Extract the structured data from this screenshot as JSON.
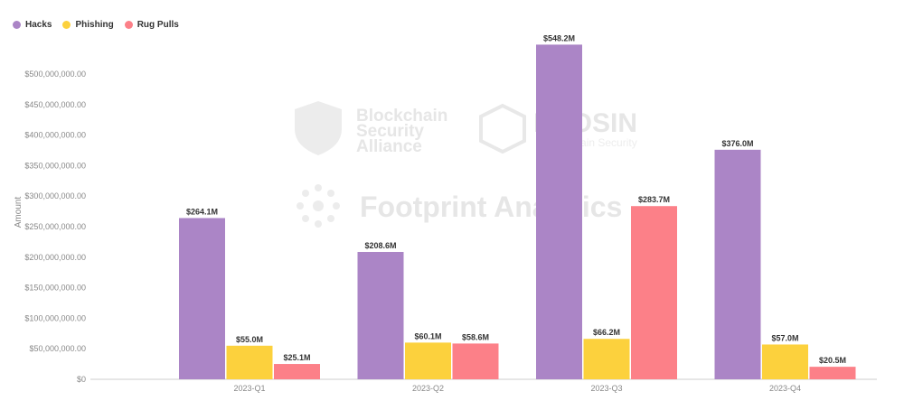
{
  "chart_data": {
    "type": "bar",
    "categories": [
      "2023-Q1",
      "2023-Q2",
      "2023-Q3",
      "2023-Q4"
    ],
    "series": [
      {
        "name": "Hacks",
        "color": "#ab85c6",
        "values": [
          264100000,
          208600000,
          548200000,
          376000000
        ],
        "labels": [
          "$264.1M",
          "$208.6M",
          "$548.2M",
          "$376.0M"
        ]
      },
      {
        "name": "Phishing",
        "color": "#fcd13d",
        "values": [
          55000000,
          60100000,
          66200000,
          57000000
        ],
        "labels": [
          "$55.0M",
          "$60.1M",
          "$66.2M",
          "$57.0M"
        ]
      },
      {
        "name": "Rug Pulls",
        "color": "#fc8088",
        "values": [
          25100000,
          58600000,
          283700000,
          20500000
        ],
        "labels": [
          "$25.1M",
          "$58.6M",
          "$283.7M",
          "$20.5M"
        ]
      }
    ],
    "ylabel": "Amount",
    "ylim": [
      0,
      550000000
    ],
    "yticks": [
      0,
      50000000,
      100000000,
      150000000,
      200000000,
      250000000,
      300000000,
      350000000,
      400000000,
      450000000,
      500000000
    ],
    "ytick_labels": [
      "$0",
      "$50,000,000.00",
      "$100,000,000.00",
      "$150,000,000.00",
      "$200,000,000.00",
      "$250,000,000.00",
      "$300,000,000.00",
      "$350,000,000.00",
      "$400,000,000.00",
      "$450,000,000.00",
      "$500,000,000.00"
    ],
    "legend_position": "top-left",
    "grid": false
  },
  "watermarks": {
    "bsa_line1": "Blockchain",
    "bsa_line2": "Security",
    "bsa_line3": "Alliance",
    "beosin": "BEOSIN",
    "beosin_sub": "Blockchain Security",
    "footprint": "Footprint Analytics"
  }
}
